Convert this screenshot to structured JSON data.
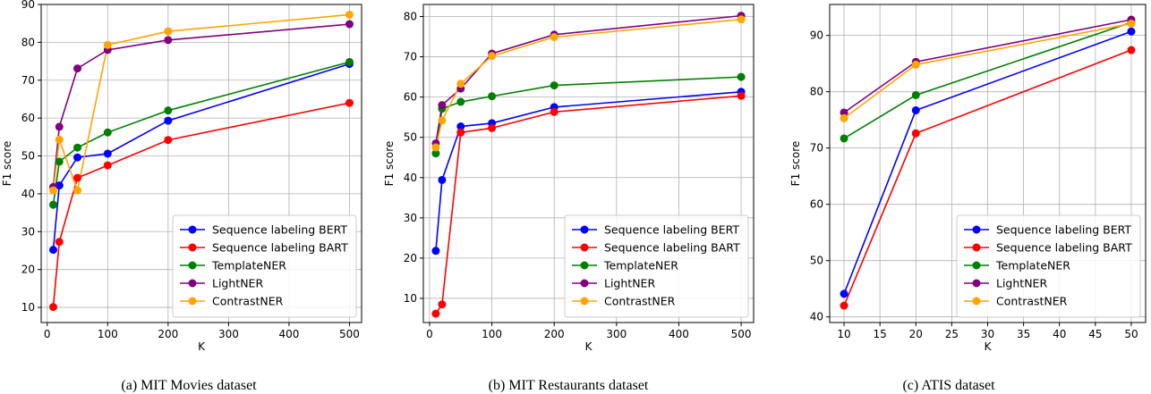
{
  "colors": {
    "Sequence labeling BERT": "#0000ff",
    "Sequence labeling BART": "#ff0000",
    "TemplateNER": "#008000",
    "LightNER": "#800080",
    "ContrastNER": "#ffa500"
  },
  "chart_data": [
    {
      "type": "line",
      "title": "",
      "caption": "(a) MIT Movies dataset",
      "xlabel": "K",
      "ylabel": "F1 score",
      "xlim": [
        -10,
        520
      ],
      "ylim": [
        6,
        90
      ],
      "xticks": [
        0,
        100,
        200,
        300,
        400,
        500
      ],
      "yticks": [
        10,
        20,
        30,
        40,
        50,
        60,
        70,
        80,
        90
      ],
      "grid": true,
      "legend_position": "lower-right",
      "x": [
        10,
        20,
        50,
        100,
        200,
        500
      ],
      "series": [
        {
          "name": "Sequence labeling BERT",
          "values": [
            25.2,
            42.2,
            49.6,
            50.6,
            59.3,
            74.3
          ]
        },
        {
          "name": "Sequence labeling BART",
          "values": [
            10.1,
            27.3,
            44.2,
            47.5,
            54.2,
            64.0
          ]
        },
        {
          "name": "TemplateNER",
          "values": [
            37.1,
            48.5,
            52.2,
            56.2,
            62.0,
            74.8
          ]
        },
        {
          "name": "LightNER",
          "values": [
            41.8,
            57.7,
            73.1,
            78.0,
            80.6,
            84.8
          ]
        },
        {
          "name": "ContrastNER",
          "values": [
            40.9,
            54.3,
            40.9,
            79.3,
            82.9,
            87.3
          ]
        }
      ]
    },
    {
      "type": "line",
      "title": "",
      "caption": "(b) MIT Restaurants dataset",
      "xlabel": "K",
      "ylabel": "F1 score",
      "xlim": [
        -10,
        520
      ],
      "ylim": [
        4,
        83
      ],
      "xticks": [
        0,
        100,
        200,
        300,
        400,
        500
      ],
      "yticks": [
        10,
        20,
        30,
        40,
        50,
        60,
        70,
        80
      ],
      "grid": true,
      "legend_position": "lower-right",
      "x": [
        10,
        20,
        50,
        100,
        200,
        500
      ],
      "series": [
        {
          "name": "Sequence labeling BERT",
          "values": [
            21.8,
            39.4,
            52.7,
            53.5,
            57.5,
            61.3
          ]
        },
        {
          "name": "Sequence labeling BART",
          "values": [
            6.2,
            8.5,
            51.2,
            52.3,
            56.3,
            60.3
          ]
        },
        {
          "name": "TemplateNER",
          "values": [
            46.0,
            57.1,
            58.8,
            60.2,
            62.9,
            65.0
          ]
        },
        {
          "name": "LightNER",
          "values": [
            48.5,
            58.0,
            62.1,
            70.8,
            75.5,
            80.2
          ]
        },
        {
          "name": "ContrastNER",
          "values": [
            47.5,
            54.2,
            63.3,
            70.2,
            74.9,
            79.3
          ]
        }
      ]
    },
    {
      "type": "line",
      "title": "",
      "caption": "(c) ATIS dataset",
      "xlabel": "K",
      "ylabel": "F1 score",
      "xlim": [
        8.0,
        52.0
      ],
      "ylim": [
        39.0,
        95.5
      ],
      "xticks": [
        10,
        15,
        20,
        25,
        30,
        35,
        40,
        45,
        50
      ],
      "yticks": [
        40,
        50,
        60,
        70,
        80,
        90
      ],
      "grid": true,
      "legend_position": "lower-right",
      "x": [
        10,
        20,
        50
      ],
      "series": [
        {
          "name": "Sequence labeling BERT",
          "values": [
            44.1,
            76.7,
            90.7
          ]
        },
        {
          "name": "Sequence labeling BART",
          "values": [
            42.0,
            72.6,
            87.4
          ]
        },
        {
          "name": "TemplateNER",
          "values": [
            71.7,
            79.4,
            92.3
          ]
        },
        {
          "name": "LightNER",
          "values": [
            76.3,
            85.3,
            92.8
          ]
        },
        {
          "name": "ContrastNER",
          "values": [
            75.3,
            84.8,
            92.1
          ]
        }
      ]
    }
  ]
}
